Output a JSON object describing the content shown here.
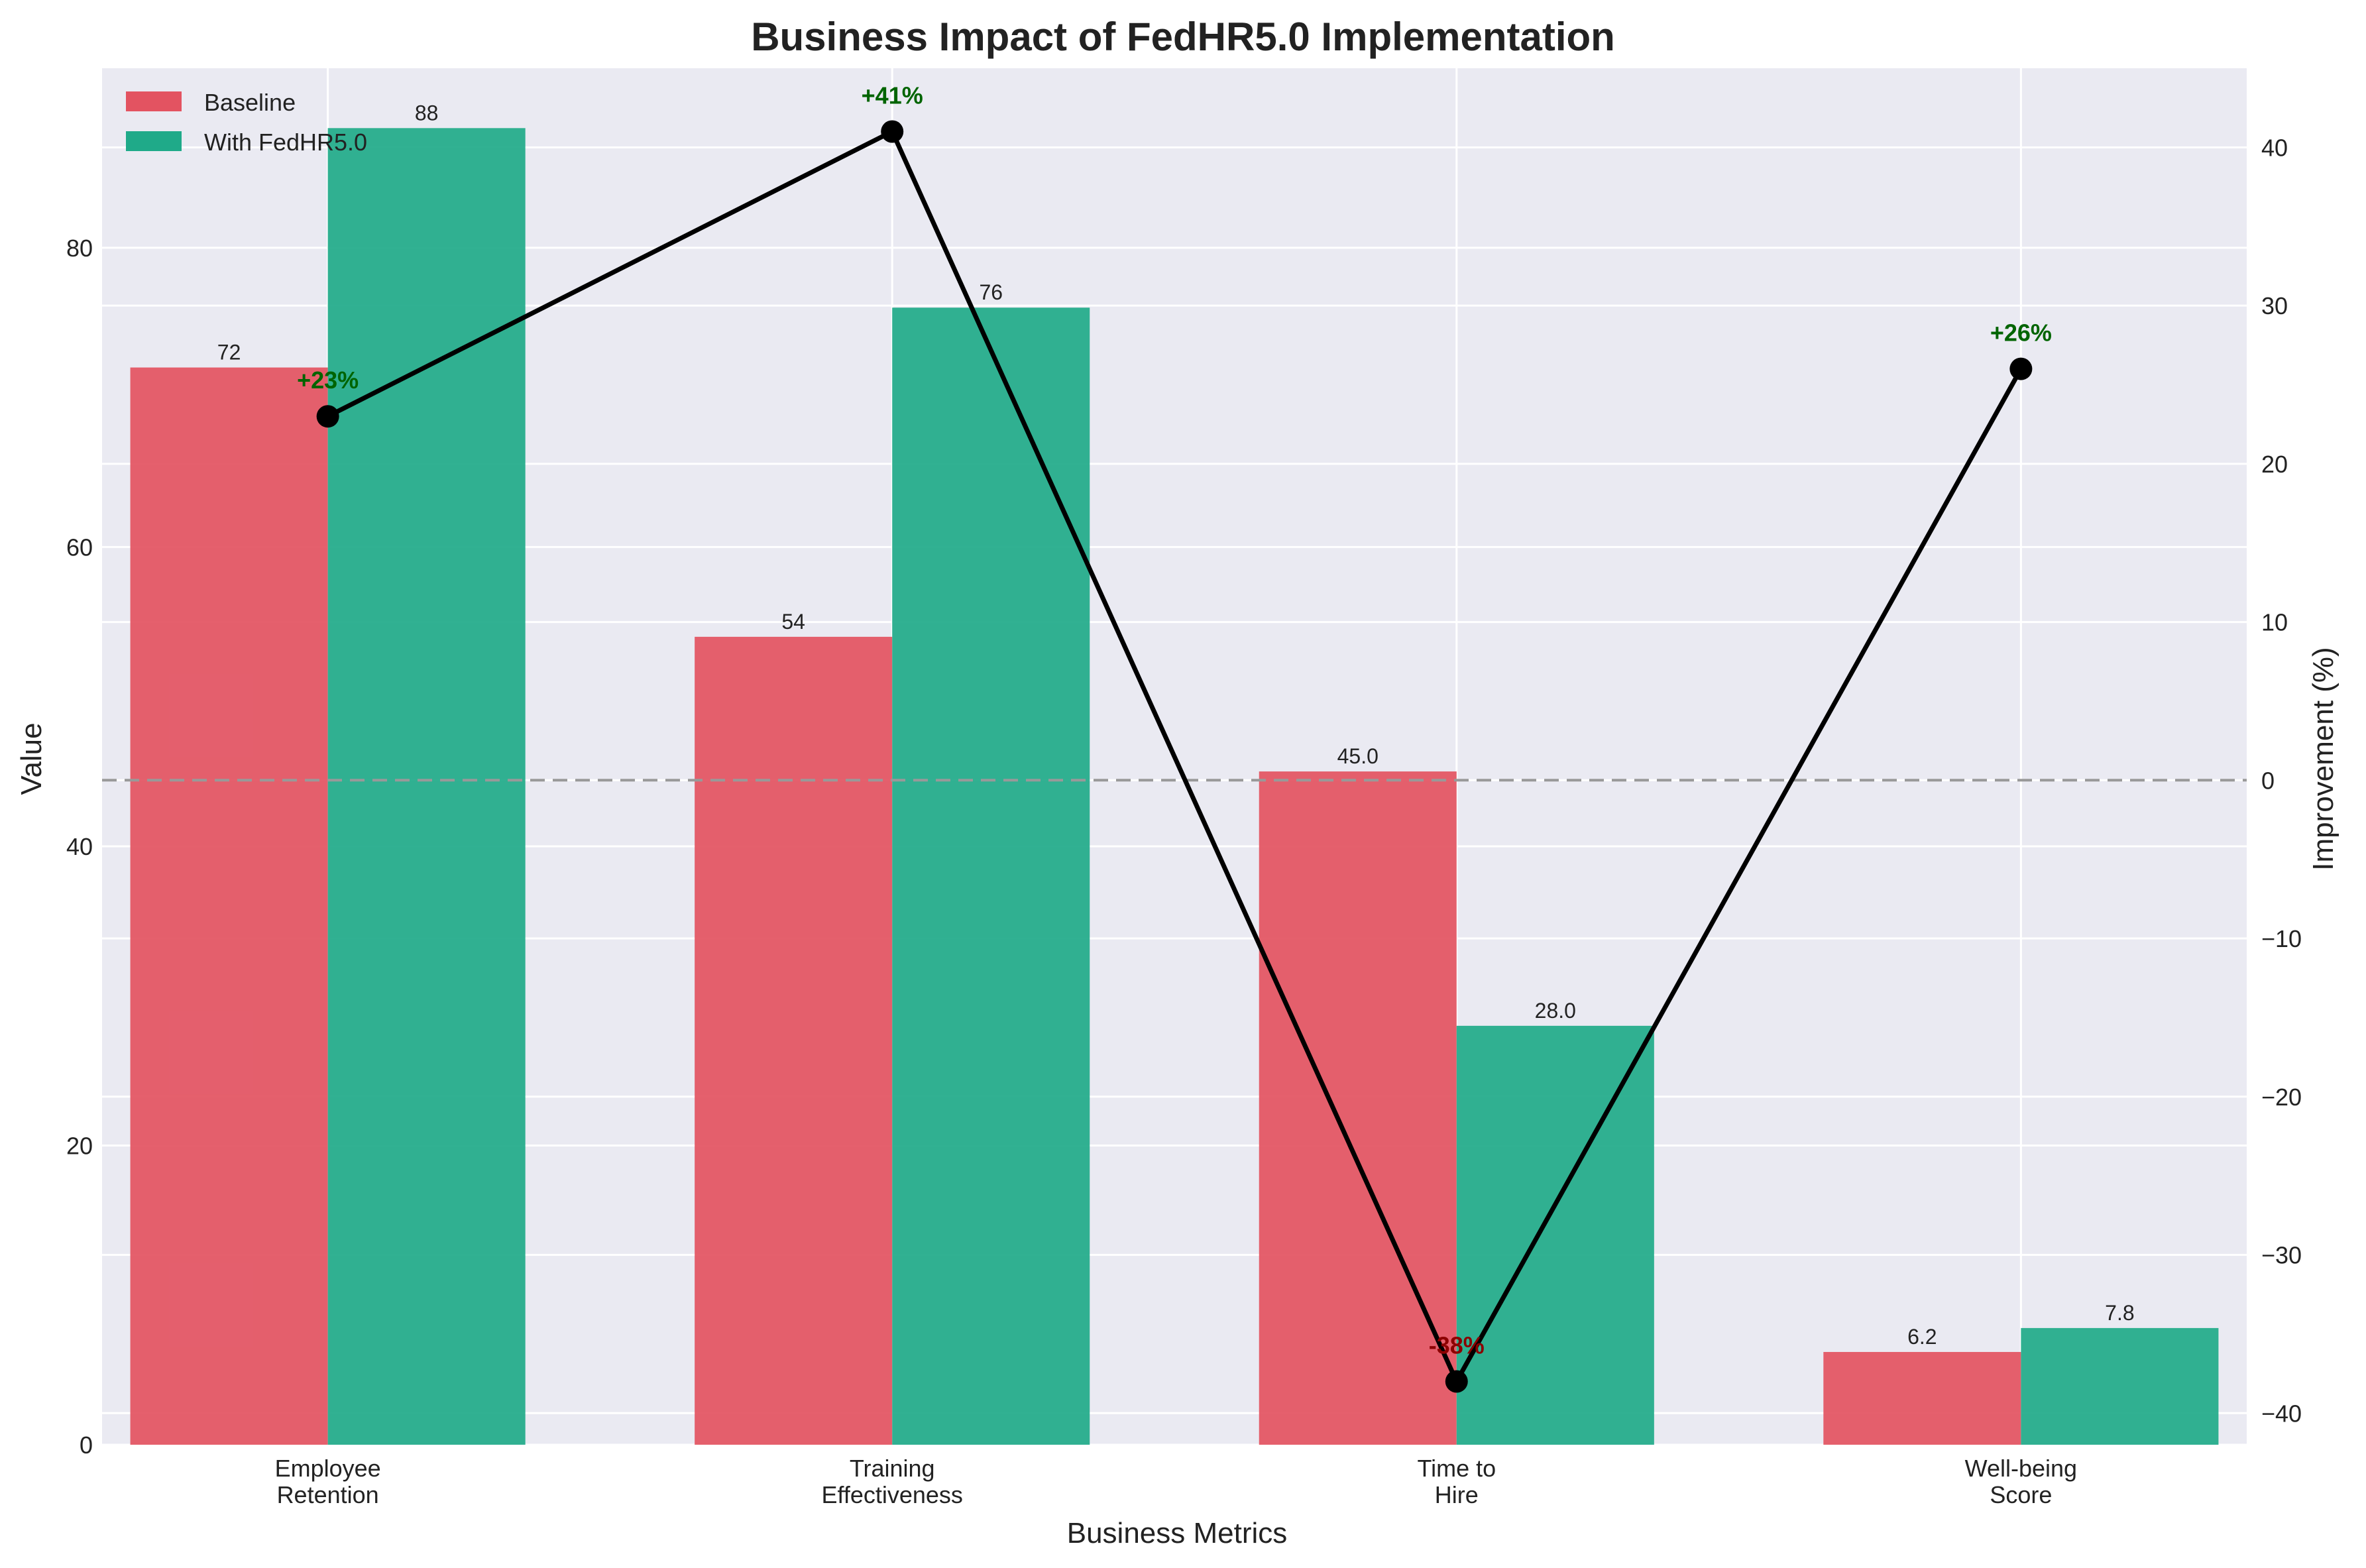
{
  "chart_data": {
    "type": "bar",
    "title": "Business Impact of FedHR5.0 Implementation",
    "xlabel": "Business Metrics",
    "ylabel": "Value",
    "y2label": "Improvement (%)",
    "categories": [
      "Employee\nRetention",
      "Training\nEffectiveness",
      "Time to\nHire",
      "Well-being\nScore"
    ],
    "series": [
      {
        "name": "Baseline",
        "values": [
          72,
          54,
          45.0,
          6.2
        ],
        "labels": [
          "72",
          "54",
          "45.0",
          "6.2"
        ],
        "color": "#e35361"
      },
      {
        "name": "With FedHR5.0",
        "values": [
          88,
          76,
          28.0,
          7.8
        ],
        "labels": [
          "88",
          "76",
          "28.0",
          "7.8"
        ],
        "color": "#1faa89"
      }
    ],
    "improvement": {
      "values": [
        23,
        41,
        -38,
        26
      ],
      "labels": [
        "+23%",
        "+41%",
        "-38%",
        "+26%"
      ],
      "line_color": "#000000",
      "positive_color": "#006400",
      "negative_color": "#8b0000",
      "zero_line": "dashed gray"
    },
    "ylim": [
      0,
      92
    ],
    "y2lim": [
      -42,
      45
    ],
    "yticks": [
      0,
      20,
      40,
      60,
      80
    ],
    "y2ticks": [
      -40,
      -30,
      -20,
      -10,
      0,
      10,
      20,
      30,
      40
    ],
    "grid": true,
    "legend": "top-left",
    "background": "#eaeaf2"
  }
}
